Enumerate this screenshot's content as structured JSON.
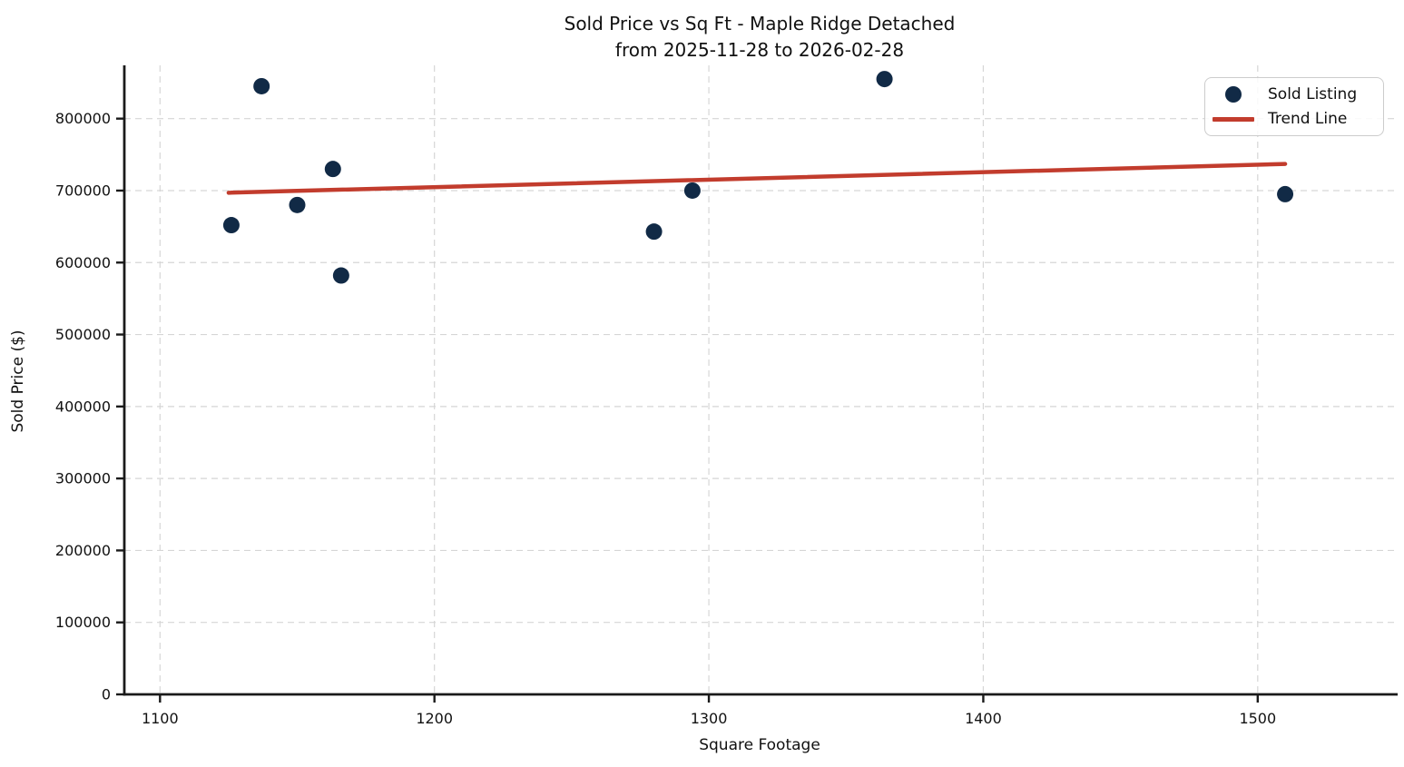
{
  "chart_data": {
    "type": "scatter",
    "title": "Sold Price vs Sq Ft - Maple Ridge Detached\nfrom 2025-11-28 to 2026-02-28",
    "title_line1": "Sold Price vs Sq Ft - Maple Ridge Detached",
    "title_line2": "from 2025-11-28 to 2026-02-28",
    "xlabel": "Square Footage",
    "ylabel": "Sold Price ($)",
    "xlim": [
      1087,
      1550
    ],
    "ylim": [
      0,
      874000
    ],
    "x_ticks": [
      1100,
      1200,
      1300,
      1400,
      1500
    ],
    "y_ticks": [
      0,
      100000,
      200000,
      300000,
      400000,
      500000,
      600000,
      700000,
      800000
    ],
    "grid": true,
    "grid_style": "dashed",
    "legend_position": "upper right",
    "series": [
      {
        "name": "Sold Listing",
        "type": "scatter",
        "marker": "circle",
        "color": "#112a46",
        "points": [
          [
            1126,
            652000
          ],
          [
            1137,
            845000
          ],
          [
            1150,
            680000
          ],
          [
            1163,
            730000
          ],
          [
            1166,
            582000
          ],
          [
            1280,
            643000
          ],
          [
            1294,
            700000
          ],
          [
            1364,
            855000
          ],
          [
            1510,
            695000
          ]
        ]
      },
      {
        "name": "Trend Line",
        "type": "line",
        "color": "#c23c2d",
        "points": [
          [
            1125,
            697000
          ],
          [
            1510,
            737000
          ]
        ]
      }
    ]
  },
  "legend": {
    "items": [
      "Sold Listing",
      "Trend Line"
    ]
  },
  "colors": {
    "background": "#ffffff",
    "scatter_point": "#112a46",
    "trend_line": "#c23c2d",
    "gridline": "#d6d6d6",
    "axis": "#1a1a1a",
    "text": "#111111",
    "legend_border": "#cccccc"
  }
}
